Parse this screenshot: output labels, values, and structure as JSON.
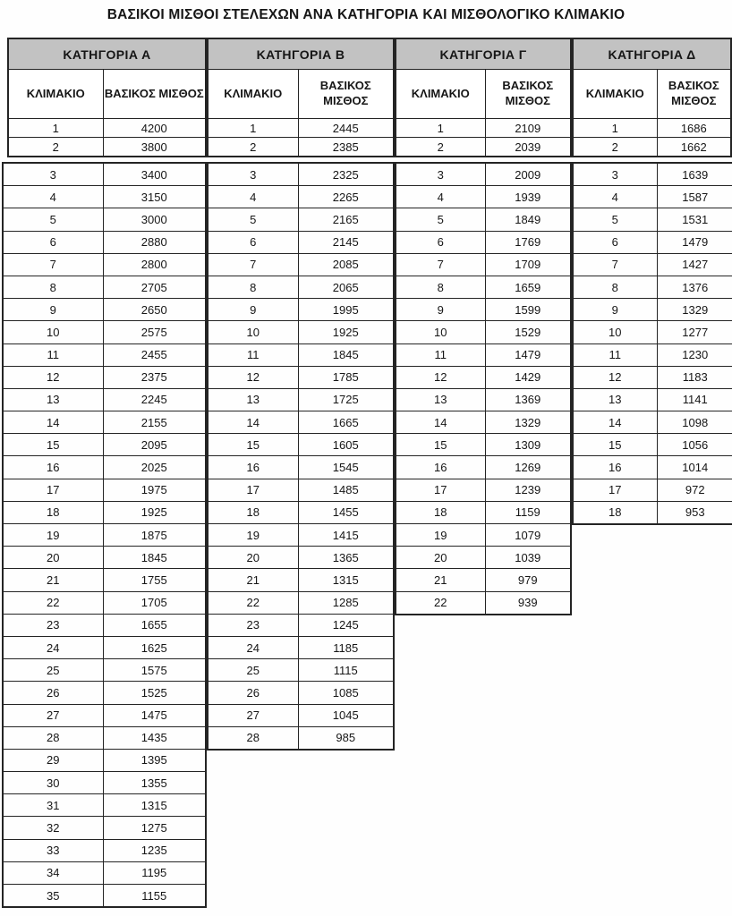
{
  "title": "ΒΑΣΙΚΟΙ ΜΙΣΘΟΙ ΣΤΕΛΕΧΩΝ ΑΝΑ ΚΑΤΗΓΟΡΙΑ ΚΑΙ ΜΙΣΘΟΛΟΓΙΚΟ ΚΛΙΜΑΚΙΟ",
  "column_headers": {
    "scale": "ΚΛΙΜΑΚΙΟ",
    "salary": "ΒΑΣΙΚΟΣ ΜΙΣΘΟΣ"
  },
  "categories": [
    {
      "label": "ΚΑΤΗΓΟΡΙΑ Α",
      "rows": [
        [
          1,
          4200
        ],
        [
          2,
          3800
        ],
        [
          3,
          3400
        ],
        [
          4,
          3150
        ],
        [
          5,
          3000
        ],
        [
          6,
          2880
        ],
        [
          7,
          2800
        ],
        [
          8,
          2705
        ],
        [
          9,
          2650
        ],
        [
          10,
          2575
        ],
        [
          11,
          2455
        ],
        [
          12,
          2375
        ],
        [
          13,
          2245
        ],
        [
          14,
          2155
        ],
        [
          15,
          2095
        ],
        [
          16,
          2025
        ],
        [
          17,
          1975
        ],
        [
          18,
          1925
        ],
        [
          19,
          1875
        ],
        [
          20,
          1845
        ],
        [
          21,
          1755
        ],
        [
          22,
          1705
        ],
        [
          23,
          1655
        ],
        [
          24,
          1625
        ],
        [
          25,
          1575
        ],
        [
          26,
          1525
        ],
        [
          27,
          1475
        ],
        [
          28,
          1435
        ],
        [
          29,
          1395
        ],
        [
          30,
          1355
        ],
        [
          31,
          1315
        ],
        [
          32,
          1275
        ],
        [
          33,
          1235
        ],
        [
          34,
          1195
        ],
        [
          35,
          1155
        ]
      ]
    },
    {
      "label": "ΚΑΤΗΓΟΡΙΑ Β",
      "rows": [
        [
          1,
          2445
        ],
        [
          2,
          2385
        ],
        [
          3,
          2325
        ],
        [
          4,
          2265
        ],
        [
          5,
          2165
        ],
        [
          6,
          2145
        ],
        [
          7,
          2085
        ],
        [
          8,
          2065
        ],
        [
          9,
          1995
        ],
        [
          10,
          1925
        ],
        [
          11,
          1845
        ],
        [
          12,
          1785
        ],
        [
          13,
          1725
        ],
        [
          14,
          1665
        ],
        [
          15,
          1605
        ],
        [
          16,
          1545
        ],
        [
          17,
          1485
        ],
        [
          18,
          1455
        ],
        [
          19,
          1415
        ],
        [
          20,
          1365
        ],
        [
          21,
          1315
        ],
        [
          22,
          1285
        ],
        [
          23,
          1245
        ],
        [
          24,
          1185
        ],
        [
          25,
          1115
        ],
        [
          26,
          1085
        ],
        [
          27,
          1045
        ],
        [
          28,
          985
        ]
      ]
    },
    {
      "label": "ΚΑΤΗΓΟΡΙΑ Γ",
      "rows": [
        [
          1,
          2109
        ],
        [
          2,
          2039
        ],
        [
          3,
          2009
        ],
        [
          4,
          1939
        ],
        [
          5,
          1849
        ],
        [
          6,
          1769
        ],
        [
          7,
          1709
        ],
        [
          8,
          1659
        ],
        [
          9,
          1599
        ],
        [
          10,
          1529
        ],
        [
          11,
          1479
        ],
        [
          12,
          1429
        ],
        [
          13,
          1369
        ],
        [
          14,
          1329
        ],
        [
          15,
          1309
        ],
        [
          16,
          1269
        ],
        [
          17,
          1239
        ],
        [
          18,
          1159
        ],
        [
          19,
          1079
        ],
        [
          20,
          1039
        ],
        [
          21,
          979
        ],
        [
          22,
          939
        ]
      ]
    },
    {
      "label": "ΚΑΤΗΓΟΡΙΑ Δ",
      "rows": [
        [
          1,
          1686
        ],
        [
          2,
          1662
        ],
        [
          3,
          1639
        ],
        [
          4,
          1587
        ],
        [
          5,
          1531
        ],
        [
          6,
          1479
        ],
        [
          7,
          1427
        ],
        [
          8,
          1376
        ],
        [
          9,
          1329
        ],
        [
          10,
          1277
        ],
        [
          11,
          1230
        ],
        [
          12,
          1183
        ],
        [
          13,
          1141
        ],
        [
          14,
          1098
        ],
        [
          15,
          1056
        ],
        [
          16,
          1014
        ],
        [
          17,
          972
        ],
        [
          18,
          953
        ]
      ]
    }
  ],
  "styles": {
    "header_bg": "#c2c2c2",
    "border_color": "#242424",
    "text_color": "#161616"
  }
}
